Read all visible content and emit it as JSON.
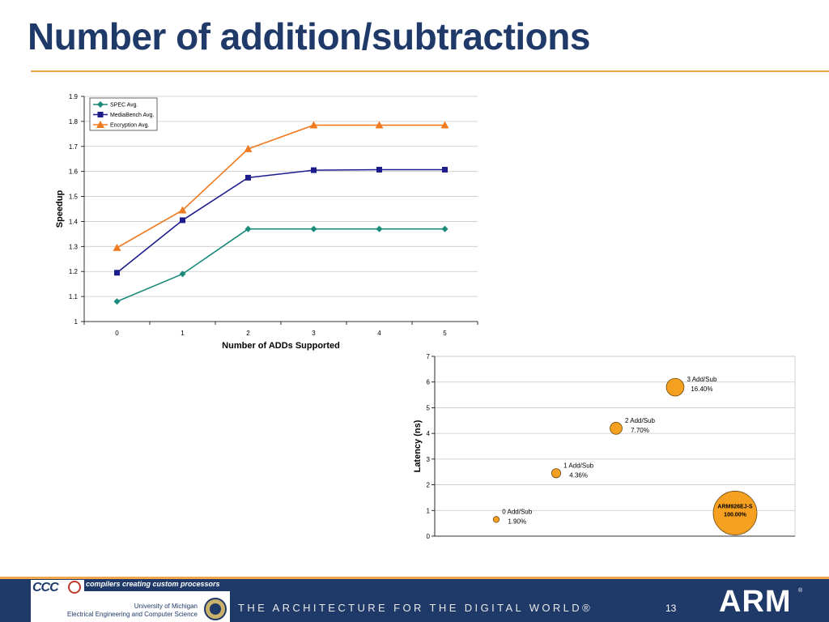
{
  "slide": {
    "title": "Number of addition/subtractions",
    "page_number": "13",
    "footer_tagline": "THE ARCHITECTURE FOR THE DIGITAL WORLD®",
    "logo_ccc": "CCC",
    "ccc_tagline": "compilers creating custom processors",
    "university_line1": "University of Michigan",
    "university_line2": "Electrical Engineering and Computer Science",
    "arm_logo": "ARM",
    "arm_reg": "®",
    "colors": {
      "title": "#1f3a68",
      "accent": "#f0a64b",
      "footer": "#1f3a68"
    },
    "icons": [
      "ccc-sickle-icon",
      "university-seal-icon"
    ]
  },
  "chart_data": [
    {
      "type": "line",
      "title": "",
      "xlabel": "Number of ADDs Supported",
      "ylabel": "Speedup",
      "categories": [
        "0",
        "1",
        "2",
        "3",
        "4",
        "5"
      ],
      "ylim": [
        1,
        1.9
      ],
      "yticks": [
        "1",
        "1.1",
        "1.2",
        "1.3",
        "1.4",
        "1.5",
        "1.6",
        "1.7",
        "1.8",
        "1.9"
      ],
      "grid": true,
      "legend": "top-left",
      "series": [
        {
          "name": "SPEC Avg.",
          "color": "#1a8a7a",
          "marker": "diamond",
          "values": [
            1.08,
            1.19,
            1.37,
            1.37,
            1.37,
            1.37
          ]
        },
        {
          "name": "MediaBench Avg.",
          "color": "#1c1c8c",
          "marker": "square",
          "values": [
            1.195,
            1.405,
            1.575,
            1.605,
            1.607,
            1.607
          ]
        },
        {
          "name": "Encryption Avg.",
          "color": "#f07a20",
          "marker": "triangle",
          "values": [
            1.295,
            1.445,
            1.69,
            1.785,
            1.785,
            1.785
          ]
        }
      ]
    },
    {
      "type": "scatter",
      "subtype": "bubble",
      "title": "",
      "ylabel": "Latency (ns)",
      "ylim": [
        0,
        7
      ],
      "yticks": [
        "0",
        "1",
        "2",
        "3",
        "4",
        "5",
        "6",
        "7"
      ],
      "grid": true,
      "color": "#f5a020",
      "points": [
        {
          "label": "0 Add/Sub",
          "value_label": "1.90%",
          "y": 0.65,
          "size": 1.9
        },
        {
          "label": "1 Add/Sub",
          "value_label": "4.36%",
          "y": 2.45,
          "size": 4.36
        },
        {
          "label": "2 Add/Sub",
          "value_label": "7.70%",
          "y": 4.2,
          "size": 7.7
        },
        {
          "label": "3 Add/Sub",
          "value_label": "16.40%",
          "y": 5.8,
          "size": 16.4
        },
        {
          "label": "ARM926EJ-S",
          "value_label": "100.00%",
          "y": 0.9,
          "size": 100
        }
      ]
    }
  ]
}
